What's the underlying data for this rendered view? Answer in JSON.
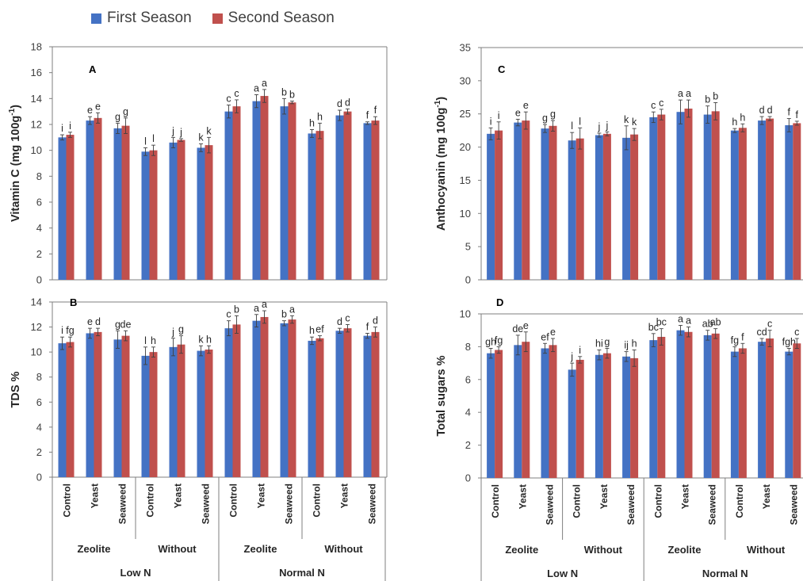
{
  "legend": {
    "series": [
      {
        "name": "First Season",
        "color": "#4472C4"
      },
      {
        "name": "Second Season",
        "color": "#C0504D"
      }
    ]
  },
  "chart_data": [
    {
      "type": "bar",
      "panel_label": "A",
      "ylabel": "Vitamin C (mg 100g-1)",
      "ylim": [
        0,
        18
      ],
      "yticks": [
        0,
        2,
        4,
        6,
        8,
        10,
        12,
        14,
        16,
        18
      ],
      "categories": [
        "Control",
        "Yeast",
        "Seaweed",
        "Control",
        "Yeast",
        "Seaweed",
        "Control",
        "Yeast",
        "Seaweed",
        "Control",
        "Yeast",
        "Seaweed"
      ],
      "series": [
        {
          "name": "First Season",
          "values": [
            11.0,
            12.3,
            11.7,
            9.9,
            10.6,
            10.2,
            13.0,
            13.8,
            13.4,
            11.3,
            12.7,
            12.1
          ],
          "errors": [
            0.2,
            0.3,
            0.4,
            0.3,
            0.4,
            0.3,
            0.5,
            0.5,
            0.6,
            0.3,
            0.4,
            0.1
          ],
          "labels": [
            "i",
            "e",
            "g",
            "l",
            "j",
            "k",
            "c",
            "a",
            "b",
            "h",
            "d",
            "f"
          ]
        },
        {
          "name": "Second Season",
          "values": [
            11.2,
            12.5,
            11.9,
            10.0,
            10.8,
            10.4,
            13.4,
            14.2,
            13.7,
            11.5,
            13.0,
            12.3
          ],
          "errors": [
            0.2,
            0.4,
            0.6,
            0.4,
            0.1,
            0.6,
            0.5,
            0.5,
            0.1,
            0.6,
            0.2,
            0.3
          ],
          "labels": [
            "i",
            "e",
            "g",
            "l",
            "j",
            "k",
            "c",
            "a",
            "b",
            "h",
            "d",
            "f"
          ]
        }
      ]
    },
    {
      "type": "bar",
      "panel_label": "B",
      "ylabel": "TDS %",
      "ylim": [
        0,
        14
      ],
      "yticks": [
        0,
        2,
        4,
        6,
        8,
        10,
        12,
        14
      ],
      "categories": [
        "Control",
        "Yeast",
        "Seaweed",
        "Control",
        "Yeast",
        "Seaweed",
        "Control",
        "Yeast",
        "Seaweed",
        "Control",
        "Yeast",
        "Seaweed"
      ],
      "series": [
        {
          "name": "First Season",
          "values": [
            10.7,
            11.5,
            11.0,
            9.7,
            10.4,
            10.1,
            11.9,
            12.5,
            12.3,
            10.9,
            11.7,
            11.3
          ],
          "errors": [
            0.5,
            0.4,
            0.7,
            0.7,
            0.7,
            0.4,
            0.6,
            0.5,
            0.2,
            0.3,
            0.2,
            0.2
          ],
          "labels": [
            "i",
            "e",
            "g",
            "l",
            "j",
            "k",
            "c",
            "a",
            "b",
            "h",
            "d",
            "f"
          ]
        },
        {
          "name": "Second Season",
          "values": [
            10.8,
            11.6,
            11.3,
            10.0,
            10.6,
            10.2,
            12.2,
            12.8,
            12.6,
            11.1,
            11.9,
            11.6
          ],
          "errors": [
            0.4,
            0.3,
            0.4,
            0.4,
            0.7,
            0.3,
            0.7,
            0.5,
            0.3,
            0.2,
            0.3,
            0.4
          ],
          "labels": [
            "fg",
            "d",
            "de",
            "h",
            "g",
            "h",
            "b",
            "a",
            "a",
            "ef",
            "c",
            "d"
          ]
        }
      ]
    },
    {
      "type": "bar",
      "panel_label": "C",
      "ylabel": "Anthocyanin (mg 100g-1)",
      "ylim": [
        0,
        35
      ],
      "yticks": [
        0,
        5,
        10,
        15,
        20,
        25,
        30,
        35
      ],
      "categories": [
        "Control",
        "Yeast",
        "Seaweed",
        "Control",
        "Yeast",
        "Seaweed",
        "Control",
        "Yeast",
        "Seaweed",
        "Control",
        "Yeast",
        "Seaweed"
      ],
      "series": [
        {
          "name": "First Season",
          "values": [
            22.0,
            23.7,
            22.8,
            21.0,
            21.8,
            21.4,
            24.5,
            25.3,
            24.9,
            22.5,
            24.0,
            23.3
          ],
          "errors": [
            0.9,
            0.5,
            0.6,
            1.2,
            0.3,
            1.8,
            0.8,
            1.8,
            1.3,
            0.3,
            0.6,
            1.0
          ],
          "labels": [
            "i",
            "e",
            "g",
            "l",
            "j",
            "k",
            "c",
            "a",
            "b",
            "h",
            "d",
            "f"
          ]
        },
        {
          "name": "Second Season",
          "values": [
            22.5,
            24.0,
            23.2,
            21.3,
            22.0,
            21.9,
            24.9,
            25.8,
            25.4,
            22.9,
            24.3,
            23.6
          ],
          "errors": [
            1.3,
            1.3,
            0.8,
            1.6,
            0.3,
            0.9,
            0.8,
            1.3,
            1.3,
            0.6,
            0.3,
            0.3
          ],
          "labels": [
            "i",
            "e",
            "g",
            "l",
            "j",
            "k",
            "c",
            "a",
            "b",
            "h",
            "d",
            "f"
          ]
        }
      ]
    },
    {
      "type": "bar",
      "panel_label": "D",
      "ylabel": "Total sugars %",
      "ylim": [
        0,
        10
      ],
      "yticks": [
        0,
        2,
        4,
        6,
        8,
        10
      ],
      "categories": [
        "Control",
        "Yeast",
        "Seaweed",
        "Control",
        "Yeast",
        "Seaweed",
        "Control",
        "Yeast",
        "Seaweed",
        "Control",
        "Yeast",
        "Seaweed"
      ],
      "series": [
        {
          "name": "First Season",
          "values": [
            7.6,
            8.1,
            7.9,
            6.6,
            7.5,
            7.4,
            8.4,
            9.0,
            8.7,
            7.7,
            8.3,
            7.7
          ],
          "errors": [
            0.3,
            0.6,
            0.3,
            0.4,
            0.3,
            0.3,
            0.4,
            0.3,
            0.3,
            0.3,
            0.2,
            0.2
          ],
          "labels": [
            "gh",
            "de",
            "ef",
            "j",
            "hi",
            "ij",
            "bc",
            "a",
            "ab",
            "fg",
            "cd",
            "fgh"
          ]
        },
        {
          "name": "Second Season",
          "values": [
            7.8,
            8.3,
            8.1,
            7.2,
            7.6,
            7.3,
            8.6,
            8.9,
            8.8,
            7.9,
            8.5,
            8.2
          ],
          "errors": [
            0.2,
            0.6,
            0.4,
            0.2,
            0.3,
            0.5,
            0.5,
            0.3,
            0.3,
            0.3,
            0.5,
            0.3
          ],
          "labels": [
            "fg",
            "e",
            "e",
            "i",
            "g",
            "h",
            "bc",
            "a",
            "ab",
            "f",
            "c",
            "c"
          ]
        }
      ]
    }
  ],
  "axis_groups": {
    "level2": [
      "Zeolite",
      "Without",
      "Zeolite",
      "Without"
    ],
    "level3": [
      "Low N",
      "Normal N"
    ]
  }
}
